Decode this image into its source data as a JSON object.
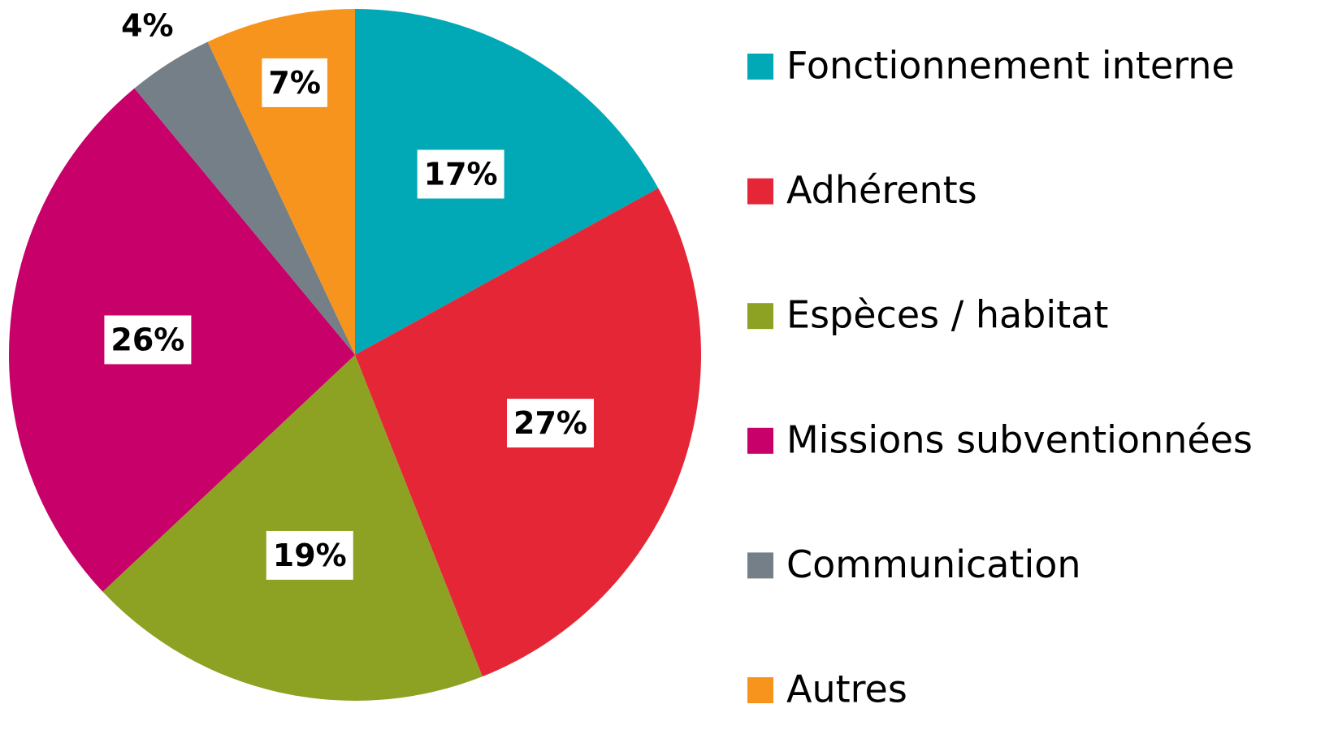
{
  "chart_data": {
    "type": "pie",
    "categories": [
      "Fonctionnement interne",
      "Adhérents",
      "Espèces / habitat",
      "Missions subventionnées",
      "Communication",
      "Autres"
    ],
    "values": [
      17,
      27,
      19,
      26,
      4,
      7
    ],
    "value_labels": [
      "17%",
      "27%",
      "19%",
      "26%",
      "4%",
      "7%"
    ],
    "colors": [
      "#00a9b5",
      "#e52637",
      "#8da123",
      "#c8006a",
      "#747f87",
      "#f7941d"
    ],
    "legend": "right"
  }
}
